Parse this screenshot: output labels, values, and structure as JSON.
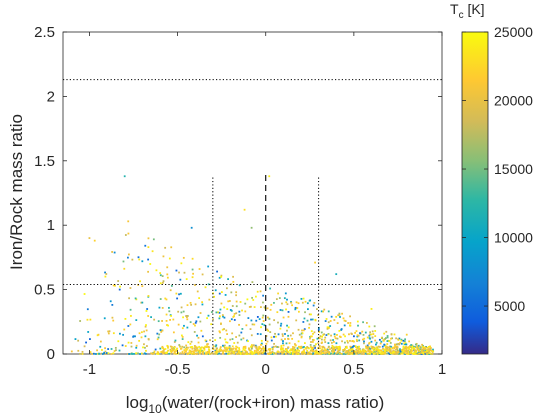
{
  "chart_data": {
    "type": "scatter",
    "title": "",
    "xlabel_main": "log",
    "xlabel_sub": "10",
    "xlabel_rest": "(water/(rock+iron) mass ratio)",
    "ylabel": "Iron/Rock mass ratio",
    "xlim": [
      -1.15,
      1.0
    ],
    "ylim": [
      0,
      2.5
    ],
    "xticks": [
      -1,
      -0.5,
      0,
      0.5,
      1
    ],
    "xtick_labels": [
      "-1",
      "-0.5",
      "0",
      "0.5",
      "1"
    ],
    "yticks": [
      0,
      0.5,
      1,
      1.5,
      2,
      2.5
    ],
    "ytick_labels": [
      "0",
      "0.5",
      "1",
      "1.5",
      "2",
      "2.5"
    ],
    "grid": false,
    "reference_lines": {
      "horizontal_dotted": [
        2.13,
        0.54
      ],
      "vertical_dotted": [
        {
          "x": -0.3,
          "y_top": 1.37
        },
        {
          "x": 0.3,
          "y_top": 1.37
        }
      ],
      "vertical_dashed": [
        {
          "x": 0.0,
          "y_top": 1.39
        }
      ]
    },
    "colorbar": {
      "label_main": "T",
      "label_sub": "c",
      "label_rest": " [K]",
      "range": [
        1500,
        25000
      ],
      "ticks": [
        5000,
        10000,
        15000,
        20000,
        25000
      ],
      "tick_labels": [
        "5000",
        "10000",
        "15000",
        "20000",
        "25000"
      ],
      "colormap": "parula"
    },
    "points_note_count": 1400,
    "cluster_notes": {
      "x_range": [
        -1.1,
        0.95
      ],
      "y_range": [
        0,
        1.4
      ],
      "upper_envelope": [
        [
          -1.05,
          0.9
        ],
        [
          -0.8,
          1.38
        ],
        [
          -0.5,
          1.0
        ],
        [
          -0.3,
          0.85
        ],
        [
          0.0,
          0.65
        ],
        [
          0.3,
          0.5
        ],
        [
          0.5,
          0.35
        ],
        [
          0.7,
          0.22
        ],
        [
          0.95,
          0.05
        ]
      ]
    },
    "sample_points": [
      {
        "x": -1.1,
        "y": 0.02,
        "T": 21000
      },
      {
        "x": -1.0,
        "y": 0.9,
        "T": 20000
      },
      {
        "x": -0.97,
        "y": 0.88,
        "T": 22000
      },
      {
        "x": -0.8,
        "y": 1.38,
        "T": 12000
      },
      {
        "x": -0.78,
        "y": 1.03,
        "T": 21000
      },
      {
        "x": -0.7,
        "y": 0.72,
        "T": 9000
      },
      {
        "x": -0.62,
        "y": 0.65,
        "T": 24000
      },
      {
        "x": -0.42,
        "y": 0.98,
        "T": 8000
      },
      {
        "x": -0.12,
        "y": 1.12,
        "T": 23000
      },
      {
        "x": -0.08,
        "y": 0.98,
        "T": 16000
      },
      {
        "x": 0.02,
        "y": 1.38,
        "T": 24000
      },
      {
        "x": 0.28,
        "y": 0.71,
        "T": 22000
      },
      {
        "x": 0.4,
        "y": 0.62,
        "T": 11000
      },
      {
        "x": 0.6,
        "y": 0.35,
        "T": 24000
      },
      {
        "x": 0.8,
        "y": 0.15,
        "T": 22000
      },
      {
        "x": 0.95,
        "y": 0.02,
        "T": 24000
      }
    ]
  }
}
